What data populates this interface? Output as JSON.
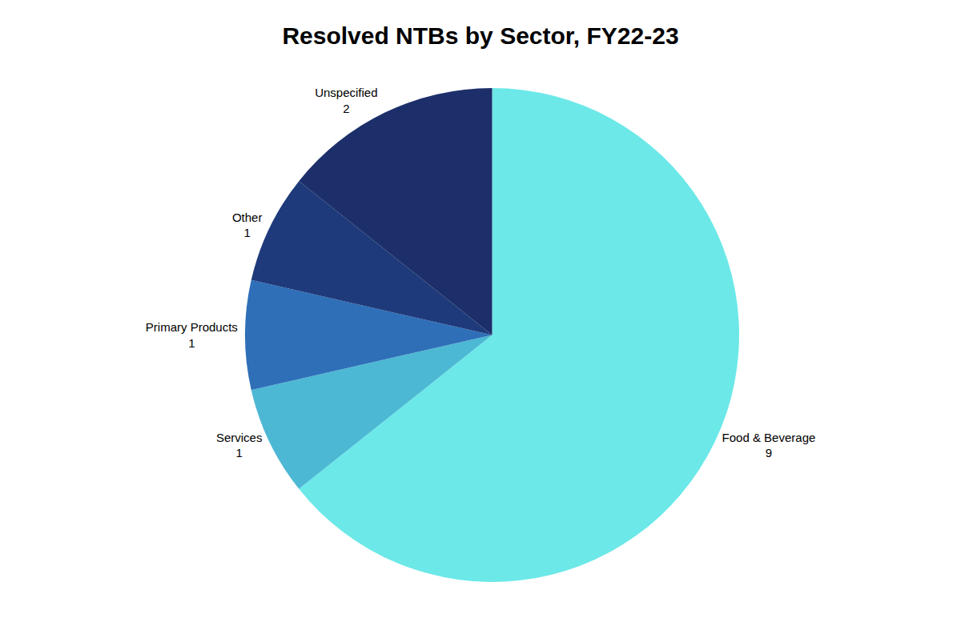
{
  "chart_data": {
    "type": "pie",
    "title": "Resolved NTBs by Sector, FY22-23",
    "categories": [
      "Food & Beverage",
      "Services",
      "Primary Products",
      "Other",
      "Unspecified"
    ],
    "values": [
      9,
      1,
      1,
      1,
      2
    ],
    "colors": [
      "#6CE8E8",
      "#4DB8D4",
      "#2E6FB8",
      "#1E3A7A",
      "#1C2F6A"
    ],
    "data_labels": true
  }
}
